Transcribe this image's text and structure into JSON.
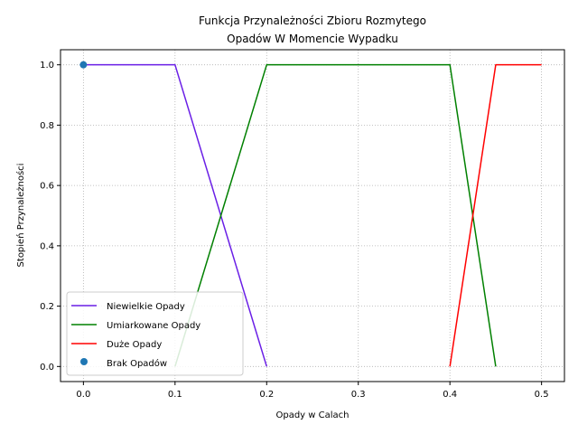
{
  "chart_data": {
    "type": "line",
    "title_line1": "Funkcja Przynależności Zbioru Rozmytego",
    "title_line2": "Opadów W Momencie Wypadku",
    "xlabel": "Opady w Calach",
    "ylabel": "Stopień Przynależności",
    "xlim": [
      -0.025,
      0.525
    ],
    "ylim": [
      -0.05,
      1.05
    ],
    "xticks": [
      0.0,
      0.1,
      0.2,
      0.3,
      0.4,
      0.5
    ],
    "xtick_labels": [
      "0.0",
      "0.1",
      "0.2",
      "0.3",
      "0.4",
      "0.5"
    ],
    "yticks": [
      0.0,
      0.2,
      0.4,
      0.6,
      0.8,
      1.0
    ],
    "ytick_labels": [
      "0.0",
      "0.2",
      "0.4",
      "0.6",
      "0.8",
      "1.0"
    ],
    "grid": true,
    "legend_position": "lower-left",
    "series": [
      {
        "name": "Niewielkie Opady",
        "color": "#6a1fe6",
        "kind": "line",
        "x": [
          0.0,
          0.1,
          0.2
        ],
        "y": [
          1.0,
          1.0,
          0.0
        ]
      },
      {
        "name": "Umiarkowane Opady",
        "color": "#008000",
        "kind": "line",
        "x": [
          0.1,
          0.2,
          0.4,
          0.45
        ],
        "y": [
          0.0,
          1.0,
          1.0,
          0.0
        ]
      },
      {
        "name": "Duże Opady",
        "color": "#ff0000",
        "kind": "line",
        "x": [
          0.4,
          0.45,
          0.5
        ],
        "y": [
          0.0,
          1.0,
          1.0
        ]
      },
      {
        "name": "Brak Opadów",
        "color": "#1f77b4",
        "kind": "scatter",
        "x": [
          0.0
        ],
        "y": [
          1.0
        ]
      }
    ]
  }
}
